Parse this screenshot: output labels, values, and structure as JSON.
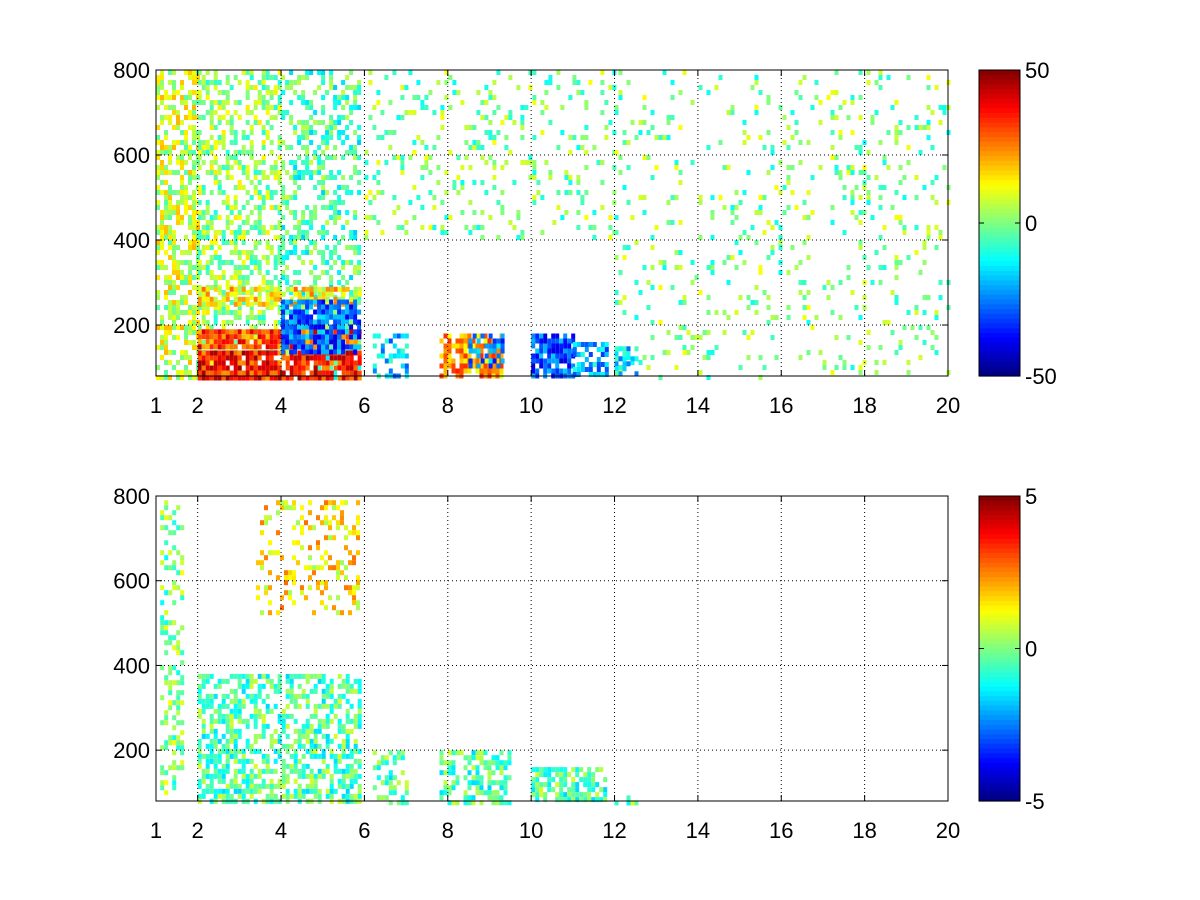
{
  "chart_data": [
    {
      "type": "heatmap",
      "title": "",
      "xlabel": "",
      "ylabel": "",
      "xlim": [
        1,
        20
      ],
      "ylim": [
        80,
        800
      ],
      "x_ticks": [
        1,
        2,
        4,
        6,
        8,
        10,
        12,
        14,
        16,
        18,
        20
      ],
      "y_ticks": [
        200,
        400,
        600,
        800
      ],
      "grid": true,
      "colormap": "jet",
      "color_range": [
        -50,
        50
      ],
      "colorbar_ticks": [
        50,
        0,
        -50
      ],
      "regions": [
        {
          "x": [
            1.0,
            2.0
          ],
          "y": [
            80,
            800
          ],
          "level": 0.15,
          "density": 0.55
        },
        {
          "x": [
            2.0,
            4.0
          ],
          "y": [
            80,
            800
          ],
          "level": 0.05,
          "density": 0.45
        },
        {
          "x": [
            4.0,
            5.9
          ],
          "y": [
            80,
            800
          ],
          "level": -0.1,
          "density": 0.4
        },
        {
          "x": [
            6.0,
            12.0
          ],
          "y": [
            400,
            800
          ],
          "level": 0.0,
          "density": 0.15
        },
        {
          "x": [
            12.0,
            20.0
          ],
          "y": [
            80,
            800
          ],
          "level": 0.0,
          "density": 0.1
        },
        {
          "x": [
            2.0,
            5.9
          ],
          "y": [
            80,
            140
          ],
          "level": 0.7,
          "density": 0.9
        },
        {
          "x": [
            2.0,
            5.9
          ],
          "y": [
            150,
            190
          ],
          "level": 0.6,
          "density": 0.85
        },
        {
          "x": [
            2.0,
            5.9
          ],
          "y": [
            250,
            290
          ],
          "level": 0.3,
          "density": 0.7
        },
        {
          "x": [
            4.0,
            5.9
          ],
          "y": [
            140,
            260
          ],
          "level": -0.55,
          "density": 0.8
        },
        {
          "x": [
            6.2,
            7.0
          ],
          "y": [
            80,
            180
          ],
          "level": -0.35,
          "density": 0.5
        },
        {
          "x": [
            7.8,
            9.3
          ],
          "y": [
            80,
            180
          ],
          "level": 0.45,
          "density": 0.75
        },
        {
          "x": [
            8.5,
            9.3
          ],
          "y": [
            100,
            180
          ],
          "level": -0.5,
          "density": 0.6
        },
        {
          "x": [
            10.0,
            11.0
          ],
          "y": [
            80,
            180
          ],
          "level": -0.6,
          "density": 0.85
        },
        {
          "x": [
            11.0,
            11.8
          ],
          "y": [
            80,
            160
          ],
          "level": -0.4,
          "density": 0.6
        },
        {
          "x": [
            12.0,
            12.5
          ],
          "y": [
            80,
            150
          ],
          "level": -0.3,
          "density": 0.5
        }
      ]
    },
    {
      "type": "heatmap",
      "title": "",
      "xlabel": "",
      "ylabel": "",
      "xlim": [
        1,
        20
      ],
      "ylim": [
        80,
        800
      ],
      "x_ticks": [
        1,
        2,
        4,
        6,
        8,
        10,
        12,
        14,
        16,
        18,
        20
      ],
      "y_ticks": [
        200,
        400,
        600,
        800
      ],
      "grid": true,
      "colormap": "jet",
      "color_range": [
        -5,
        5
      ],
      "colorbar_ticks": [
        5,
        0,
        -5
      ],
      "regions": [
        {
          "x": [
            2.0,
            5.9
          ],
          "y": [
            80,
            380
          ],
          "level": -0.08,
          "density": 0.55
        },
        {
          "x": [
            6.2,
            7.0
          ],
          "y": [
            80,
            200
          ],
          "level": -0.08,
          "density": 0.4
        },
        {
          "x": [
            7.8,
            9.5
          ],
          "y": [
            80,
            200
          ],
          "level": -0.08,
          "density": 0.55
        },
        {
          "x": [
            10.0,
            11.8
          ],
          "y": [
            80,
            160
          ],
          "level": -0.08,
          "density": 0.7
        },
        {
          "x": [
            12.0,
            12.6
          ],
          "y": [
            80,
            105
          ],
          "level": -0.08,
          "density": 0.4
        },
        {
          "x": [
            3.4,
            5.8
          ],
          "y": [
            520,
            790
          ],
          "level": 0.3,
          "density": 0.25
        },
        {
          "x": [
            1.1,
            1.6
          ],
          "y": [
            100,
            790
          ],
          "level": 0.0,
          "density": 0.35
        }
      ]
    }
  ]
}
